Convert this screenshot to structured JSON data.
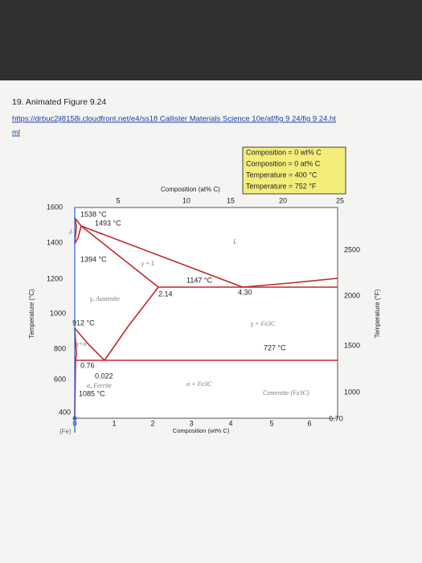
{
  "header": {
    "title": "19. Animated Figure 9.24",
    "link": [
      "https://drbuc2jl8158i.cloudfront.net/e4/ss18 Callister Materials Science 10e/af/fig 9 24/fig 9 24.ht",
      "ml"
    ]
  },
  "diagram": {
    "info_box": [
      "Composition = 0 wt% C",
      "Composition = 0 at% C",
      "Temperature = 400 °C",
      "Temperature = 752 °F"
    ],
    "top_axis": {
      "title": "Composition (at% C)",
      "ticks": [
        5,
        10,
        15,
        20,
        25
      ]
    },
    "left_axis": {
      "title": "Temperature (°C)",
      "ticks": [
        1600,
        1400,
        1200,
        1000,
        800,
        600,
        400
      ]
    },
    "right_axis": {
      "title": "Temperature (°F)",
      "ticks": [
        2500,
        2000,
        1500,
        1000
      ]
    },
    "bottom_axis": {
      "title": "Composition (wt% C)",
      "ticks": [
        "0",
        "1",
        "2",
        "3",
        "4",
        "5",
        "6",
        "6.70"
      ],
      "origin_label": "(Fe)"
    },
    "annotations": [
      "1538 °C",
      "1493 °C",
      "1394 °C",
      "1147 °C",
      "912 °C",
      "727 °C",
      "2.14",
      "4.30",
      "0.76",
      "0.022",
      "1085 °C"
    ],
    "regions": [
      "L",
      "γ + L",
      "γ, Austenite",
      "γ + Fe3C",
      "α, Ferrite",
      "α + Fe3C",
      "Cementite (Fe3C)",
      "δ",
      "γ+α"
    ]
  }
}
